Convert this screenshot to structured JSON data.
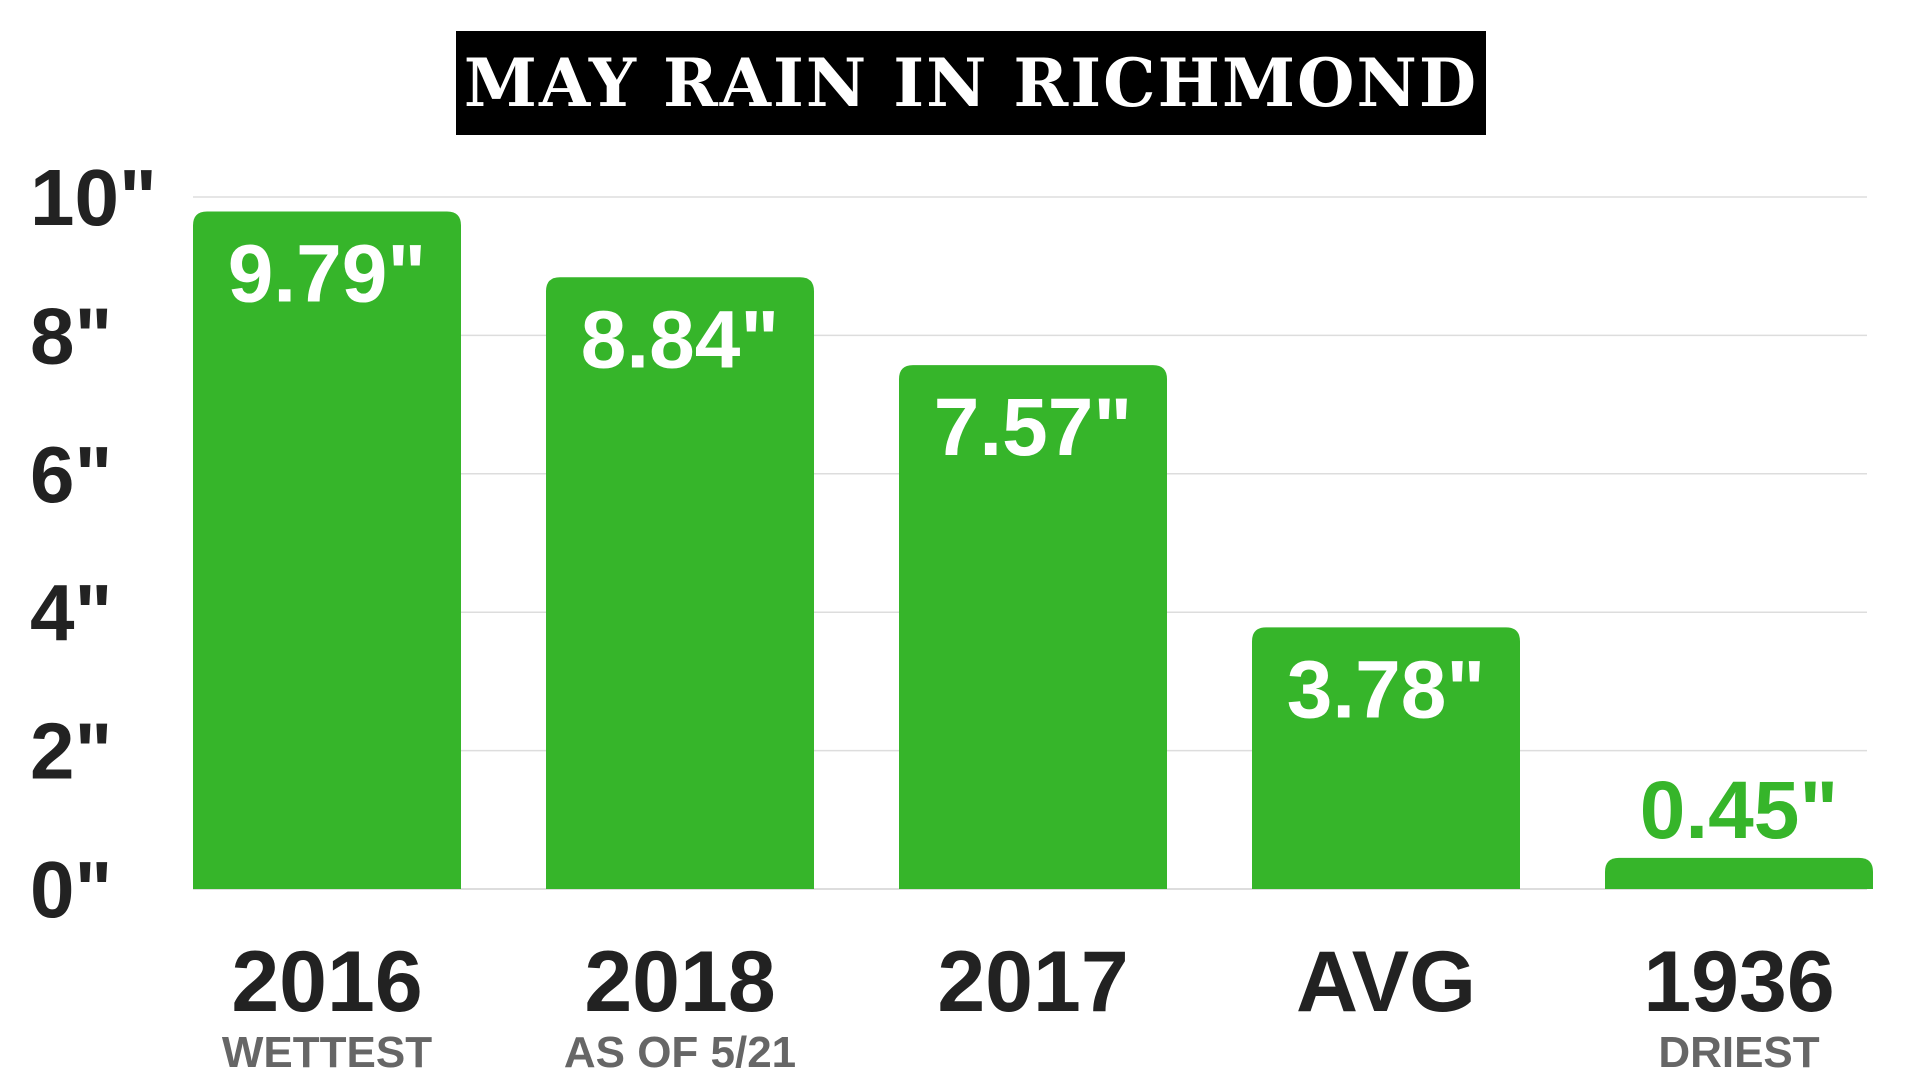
{
  "chart_data": {
    "type": "bar",
    "title": "MAY RAIN IN RICHMOND",
    "categories": [
      "2016",
      "2018",
      "2017",
      "AVG",
      "1936"
    ],
    "subtitles": [
      "WETTEST",
      "AS OF 5/21",
      "",
      "",
      "DRIEST"
    ],
    "values": [
      9.79,
      8.84,
      7.57,
      3.78,
      0.45
    ],
    "value_labels": [
      "9.79\"",
      "8.84\"",
      "7.57\"",
      "3.78\"",
      "0.45\""
    ],
    "yticks": [
      0,
      2,
      4,
      6,
      8,
      10
    ],
    "ytick_labels": [
      "0\"",
      "2\"",
      "4\"",
      "6\"",
      "8\"",
      "10\""
    ],
    "ylim": [
      0,
      10
    ],
    "xlabel": "",
    "ylabel": "",
    "grid": true,
    "colors": {
      "bar": "#36b52a",
      "label_inside": "#ffffff",
      "label_outside": "#36b52a",
      "grid": "#dddddd",
      "title_bg": "#000000",
      "title_text": "#ffffff"
    }
  }
}
